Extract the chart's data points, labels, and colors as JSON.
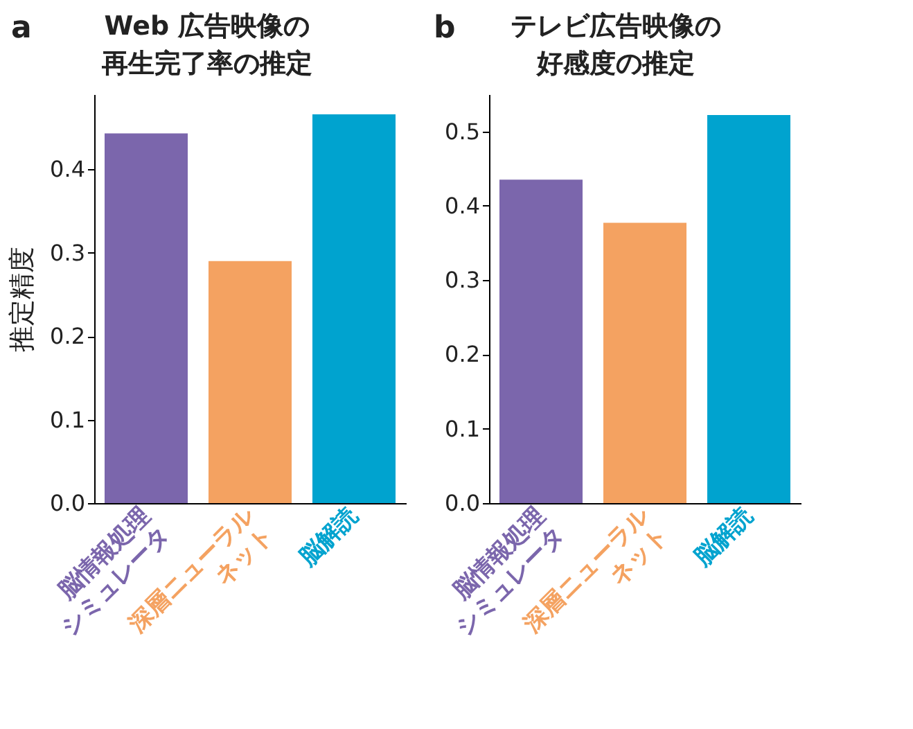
{
  "chart_data": [
    {
      "type": "bar",
      "title": "Web 広告映像の再生完了率の推定",
      "ylabel": "推定精度",
      "annotations": [
        "a"
      ],
      "categories": [
        "脳情報処理\nシミュレータ",
        "深層ニューラル\nネット",
        "脳解読"
      ],
      "values": [
        0.443,
        0.29,
        0.466
      ],
      "colors": [
        "#7b66ac",
        "#f4a261",
        "#00a3cf"
      ],
      "ylim": [
        0,
        0.49
      ],
      "yticks": [
        {
          "value": 0,
          "label": "0.0"
        },
        0.1,
        0.2,
        0.3,
        0.4
      ],
      "grid": false
    },
    {
      "type": "bar",
      "title": "テレビ広告映像の好感度の推定",
      "annotations": [
        "b"
      ],
      "categories": [
        "脳情報処理\nシミュレータ",
        "深層ニューラル\nネット",
        "脳解読"
      ],
      "values": [
        0.435,
        0.377,
        0.522
      ],
      "colors": [
        "#7b66ac",
        "#f4a261",
        "#00a3cf"
      ],
      "ylim": [
        0,
        0.55
      ],
      "yticks": [
        {
          "value": 0,
          "label": "0.0"
        },
        0.1,
        0.2,
        0.3,
        0.4,
        0.5
      ],
      "grid": false
    }
  ]
}
